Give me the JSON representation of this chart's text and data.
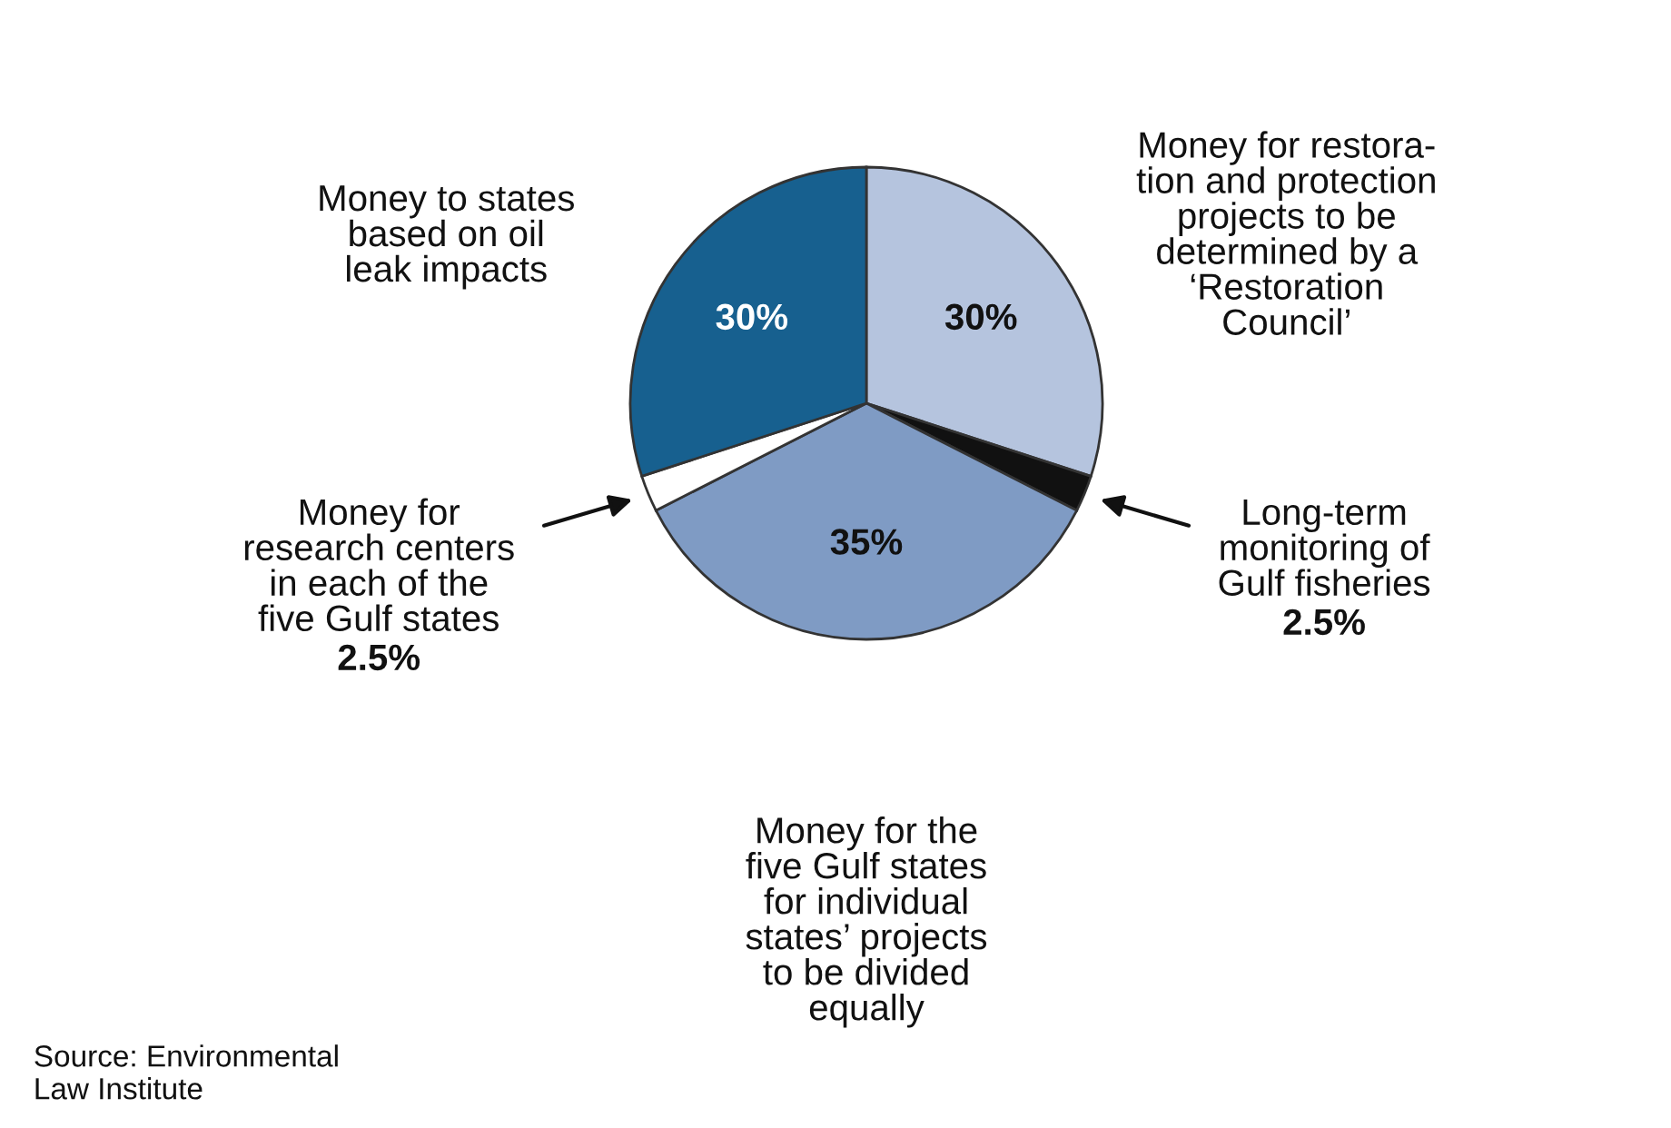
{
  "chart_data": {
    "type": "pie",
    "categories": [
      "Money for restora-\ntion and protection\nprojects to be\ndetermined by a\n‘Restoration\nCouncil’",
      "Long-term\nmonitoring of\nGulf fisheries",
      "Money for the\nfive Gulf states\nfor individual\nstates’ projects\nto be divided\nequally",
      "Money for\nresearch centers\nin each of the\nfive Gulf states",
      "Money to states\nbased on oil\nleak impacts"
    ],
    "values": [
      30,
      2.5,
      35,
      2.5,
      30
    ],
    "value_labels": [
      "30%",
      "2.5%",
      "35%",
      "2.5%",
      "30%"
    ],
    "colors": [
      "#b5c4de",
      "#111111",
      "#7f9bc4",
      "#ffffff",
      "#17608f"
    ],
    "annotations": [
      "Source: Environmental\nLaw Institute"
    ]
  }
}
